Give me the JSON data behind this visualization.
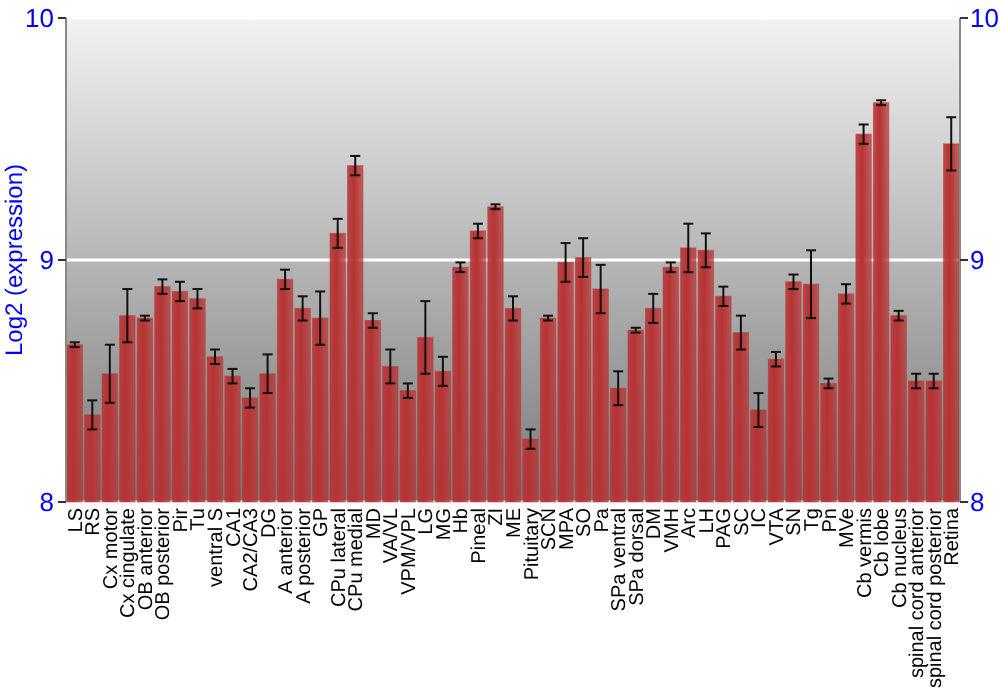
{
  "chart_data": {
    "type": "bar",
    "ylabel": "Log2 (expression)",
    "categories": [
      "LS",
      "RS",
      "Cx motor",
      "Cx cingulate",
      "OB anterior",
      "OB posterior",
      "Pir",
      "Tu",
      "ventral S",
      "CA1",
      "CA2/CA3",
      "DG",
      "A anterior",
      "A posterior",
      "GP",
      "CPu lateral",
      "CPu medial",
      "MD",
      "VA/VL",
      "VPM/VPL",
      "LG",
      "MG",
      "Hb",
      "Pineal",
      "ZI",
      "ME",
      "Pituitary",
      "SCN",
      "MPA",
      "SO",
      "Pa",
      "SPa ventral",
      "SPa dorsal",
      "DM",
      "VMH",
      "Arc",
      "LH",
      "PAG",
      "SC",
      "IC",
      "VTA",
      "SN",
      "Tg",
      "Pn",
      "MVe",
      "Cb vermis",
      "Cb lobe",
      "Cb nucleus",
      "spinal cord anterior",
      "spinal cord posterior",
      "Retina"
    ],
    "values": [
      8.65,
      8.36,
      8.53,
      8.77,
      8.76,
      8.89,
      8.87,
      8.84,
      8.6,
      8.52,
      8.43,
      8.53,
      8.92,
      8.8,
      8.76,
      9.11,
      9.39,
      8.75,
      8.56,
      8.46,
      8.68,
      8.54,
      8.97,
      9.12,
      9.22,
      8.8,
      8.26,
      8.76,
      8.99,
      9.01,
      8.88,
      8.47,
      8.71,
      8.8,
      8.97,
      9.05,
      9.04,
      8.85,
      8.7,
      8.38,
      8.59,
      8.91,
      8.9,
      8.49,
      8.86,
      9.52,
      9.65,
      8.77,
      8.5,
      8.5,
      9.48
    ],
    "errors": [
      0.01,
      0.06,
      0.12,
      0.11,
      0.01,
      0.03,
      0.04,
      0.04,
      0.03,
      0.03,
      0.04,
      0.08,
      0.04,
      0.05,
      0.11,
      0.06,
      0.04,
      0.03,
      0.07,
      0.03,
      0.15,
      0.06,
      0.02,
      0.03,
      0.01,
      0.05,
      0.04,
      0.01,
      0.08,
      0.08,
      0.1,
      0.07,
      0.01,
      0.06,
      0.02,
      0.1,
      0.07,
      0.04,
      0.07,
      0.07,
      0.03,
      0.03,
      0.14,
      0.02,
      0.04,
      0.04,
      0.01,
      0.02,
      0.03,
      0.03,
      0.11
    ],
    "color": "#b83232",
    "ylim": [
      8,
      10
    ],
    "yticks": [
      8,
      9,
      10
    ],
    "y2lim": [
      8,
      10
    ],
    "y2ticks": [
      8,
      9,
      10
    ],
    "grid": "y"
  }
}
